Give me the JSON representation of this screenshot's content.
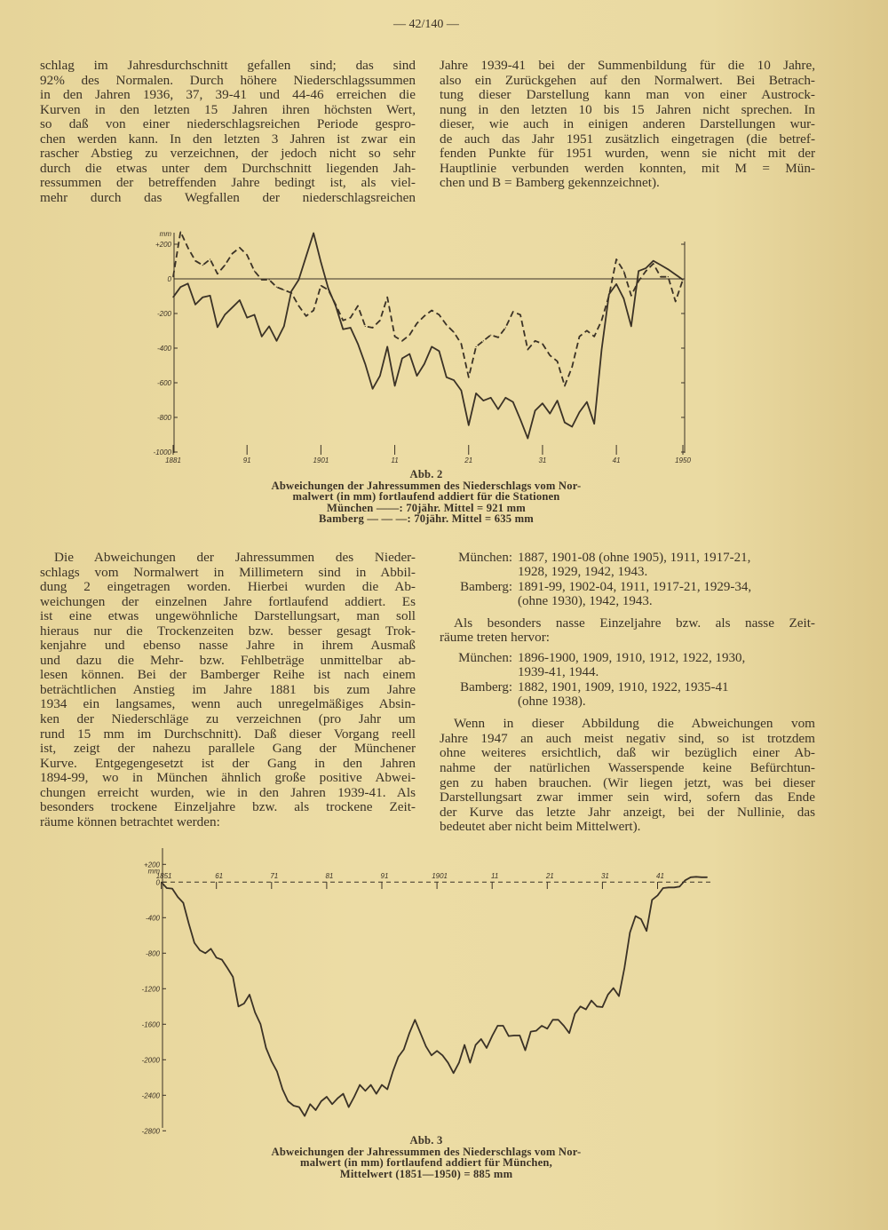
{
  "page_number": "— 42/140 —",
  "top_left_lines": [
    "schlag im Jahresdurchschnitt gefallen sind; das sind",
    "92% des Normalen. Durch höhere Niederschlagssummen",
    "in den Jahren 1936, 37, 39-41 und 44-46 erreichen die",
    "Kurven in den letzten 15 Jahren ihren höchsten Wert,",
    "so daß von einer niederschlagsreichen Periode gespro-",
    "chen werden kann. In den letzten 3 Jahren ist zwar ein",
    "rascher Abstieg zu verzeichnen, der jedoch nicht so sehr",
    "durch die etwas unter dem Durchschnitt liegenden Jah-",
    "ressummen der betreffenden Jahre bedingt ist, als viel-",
    "mehr durch das Wegfallen der niederschlagsreichen"
  ],
  "top_right_lines": [
    "Jahre 1939-41 bei der Summenbildung für die 10 Jahre,",
    "also ein Zurückgehen auf den Normalwert. Bei Betrach-",
    "tung dieser Darstellung kann man von einer Austrock-",
    "nung in den letzten 10 bis 15 Jahren nicht sprechen. In",
    "dieser, wie auch in einigen anderen Darstellungen wur-",
    "de auch das Jahr 1951 zusätzlich eingetragen (die betref-",
    "fenden Punkte für 1951 wurden, wenn sie nicht mit der",
    "Hauptlinie verbunden werden konnten, mit M = Mün-",
    "chen und B = Bamberg gekennzeichnet)."
  ],
  "figure2_caption": {
    "label": "Abb. 2",
    "lines": [
      "Abweichungen der Jahressummen des Niederschlags vom Nor-",
      "malwert (in mm) fortlaufend addiert für die Stationen",
      "München ——: 70jähr. Mittel = 921 mm",
      "Bamberg — — —: 70jähr. Mittel = 635 mm"
    ]
  },
  "bottom_left_lines": [
    "Die Abweichungen der Jahressummen des Nieder-",
    "schlags vom Normalwert in Millimetern sind in Abbil-",
    "dung 2 eingetragen worden. Hierbei wurden die Ab-",
    "weichungen der einzelnen Jahre fortlaufend addiert. Es",
    "ist eine etwas ungewöhnliche Darstellungsart, man soll",
    "hieraus nur die Trockenzeiten bzw. besser gesagt Trok-",
    "kenjahre und ebenso nasse Jahre in ihrem Ausmaß",
    "und dazu die Mehr- bzw. Fehlbeträge unmittelbar ab-",
    "lesen können. Bei der Bamberger Reihe ist nach einem",
    "beträchtlichen Anstieg im Jahre 1881 bis zum Jahre",
    "1934 ein langsames, wenn auch unregelmäßiges Absin-",
    "ken der Niederschläge zu verzeichnen (pro Jahr um",
    "rund 15 mm im Durchschnitt). Daß dieser Vorgang reell",
    "ist, zeigt der nahezu parallele Gang der Münchener",
    "Kurve. Entgegengesetzt ist der Gang in den Jahren",
    "1894-99, wo in München ähnlich große positive Abwei-",
    "chungen erreicht wurden, wie in den Jahren 1939-41. Als",
    "besonders trockene Einzeljahre bzw. als trockene Zeit-",
    "räume können betrachtet werden:"
  ],
  "dry_years": [
    {
      "station": "München:",
      "lines": [
        "1887, 1901-08 (ohne 1905), 1911, 1917-21,",
        "1928, 1929, 1942, 1943."
      ]
    },
    {
      "station": "Bamberg:",
      "lines": [
        "1891-99, 1902-04, 1911, 1917-21, 1929-34,",
        "(ohne 1930), 1942, 1943."
      ]
    }
  ],
  "wet_intro_lines": [
    "Als besonders nasse Einzeljahre bzw. als nasse Zeit-",
    "räume treten hervor:"
  ],
  "wet_years": [
    {
      "station": "München:",
      "lines": [
        "1896-1900, 1909, 1910, 1912, 1922, 1930,",
        "1939-41, 1944."
      ]
    },
    {
      "station": "Bamberg:",
      "lines": [
        "1882, 1901, 1909, 1910, 1922, 1935-41",
        "(ohne 1938)."
      ]
    }
  ],
  "closing_lines": [
    "Wenn in dieser Abbildung die Abweichungen vom",
    "Jahre 1947 an auch meist negativ sind, so ist trotzdem",
    "ohne weiteres ersichtlich, daß wir bezüglich einer Ab-",
    "nahme der natürlichen Wasserspende keine Befürchtun-",
    "gen zu haben brauchen. (Wir liegen jetzt, was bei dieser",
    "Darstellungsart zwar immer sein wird, sofern das Ende",
    "der Kurve das letzte Jahr anzeigt, bei der Nullinie, das",
    "bedeutet aber nicht beim Mittelwert)."
  ],
  "figure3_caption": {
    "label": "Abb. 3",
    "lines": [
      "Abweichungen der Jahressummen des Niederschlags vom Nor-",
      "malwert (in mm) fortlaufend addiert für München,",
      "Mittelwert (1851—1950) = 885 mm"
    ]
  },
  "chart_data": [
    {
      "type": "line",
      "title": "Abb. 2",
      "ylabel": "mm",
      "ylim": [
        -1000,
        200
      ],
      "xlim": [
        1881,
        1950
      ],
      "ytick_labels": [
        "+200",
        "0",
        "-200",
        "-400",
        "-600",
        "-800",
        "-1000"
      ],
      "ytick_values": [
        200,
        0,
        -200,
        -400,
        -600,
        -800,
        -1000
      ],
      "xtick_labels": [
        "1881",
        "91",
        "1901",
        "11",
        "21",
        "31",
        "41",
        "1950"
      ],
      "xtick_values": [
        1881,
        1891,
        1901,
        1911,
        1921,
        1931,
        1941,
        1950
      ],
      "grid": false,
      "zero_line": true,
      "x": [
        1881,
        1882,
        1883,
        1884,
        1885,
        1886,
        1887,
        1888,
        1889,
        1890,
        1891,
        1892,
        1893,
        1894,
        1895,
        1896,
        1897,
        1898,
        1899,
        1900,
        1901,
        1902,
        1903,
        1904,
        1905,
        1906,
        1907,
        1908,
        1909,
        1910,
        1911,
        1912,
        1913,
        1914,
        1915,
        1916,
        1917,
        1918,
        1919,
        1920,
        1921,
        1922,
        1923,
        1924,
        1925,
        1926,
        1927,
        1928,
        1929,
        1930,
        1931,
        1932,
        1933,
        1934,
        1935,
        1936,
        1937,
        1938,
        1939,
        1940,
        1941,
        1942,
        1943,
        1944,
        1945,
        1946,
        1947,
        1948,
        1949,
        1950
      ],
      "series": [
        {
          "name": "München",
          "style": "solid",
          "color": "#3b3226",
          "values": [
            -106,
            -47,
            -27,
            -148,
            -106,
            -97,
            -279,
            -207,
            -165,
            -123,
            -224,
            -207,
            -333,
            -274,
            -358,
            -274,
            -72,
            -5,
            129,
            264,
            96,
            -55,
            -156,
            -291,
            -282,
            -375,
            -492,
            -635,
            -560,
            -392,
            -618,
            -459,
            -434,
            -560,
            -492,
            -392,
            -417,
            -568,
            -585,
            -644,
            -845,
            -661,
            -703,
            -686,
            -753,
            -686,
            -711,
            -812,
            -921,
            -761,
            -719,
            -778,
            -703,
            -829,
            -854,
            -770,
            -711,
            -837,
            -408,
            -89,
            -30,
            -114,
            -274,
            45,
            62,
            104,
            80,
            55,
            25,
            -5
          ]
        },
        {
          "name": "Bamberg",
          "style": "dashed",
          "color": "#3b3226",
          "values": [
            12,
            272,
            180,
            104,
            79,
            113,
            29,
            79,
            146,
            180,
            138,
            45,
            -5,
            -5,
            -47,
            -64,
            -81,
            -156,
            -215,
            -182,
            -39,
            -64,
            -148,
            -240,
            -224,
            -156,
            -274,
            -282,
            -240,
            -106,
            -333,
            -358,
            -324,
            -257,
            -215,
            -182,
            -207,
            -266,
            -308,
            -375,
            -568,
            -392,
            -358,
            -324,
            -338,
            -282,
            -190,
            -207,
            -408,
            -358,
            -375,
            -442,
            -476,
            -618,
            -509,
            -333,
            -299,
            -333,
            -240,
            -97,
            113,
            45,
            -97,
            -13,
            45,
            87,
            12,
            12,
            -131,
            -5
          ]
        }
      ]
    },
    {
      "type": "line",
      "title": "Abb. 3",
      "ylabel": "mm",
      "ylim": [
        -2800,
        200
      ],
      "xlim": [
        1851,
        1950
      ],
      "ytick_labels": [
        "+200",
        "0",
        "-400",
        "-800",
        "-1200",
        "-1600",
        "-2000",
        "-2400",
        "-2800"
      ],
      "ytick_values": [
        200,
        0,
        -400,
        -800,
        -1200,
        -1600,
        -2000,
        -2400,
        -2800
      ],
      "xtick_labels": [
        "1851",
        "61",
        "71",
        "81",
        "91",
        "1901",
        "11",
        "21",
        "31",
        "41"
      ],
      "xtick_values": [
        1851,
        1861,
        1871,
        1881,
        1891,
        1901,
        1911,
        1921,
        1931,
        1941
      ],
      "grid": false,
      "zero_line": "dashed",
      "x": [
        1851,
        1852,
        1853,
        1854,
        1855,
        1856,
        1857,
        1858,
        1859,
        1860,
        1861,
        1862,
        1863,
        1864,
        1865,
        1866,
        1867,
        1868,
        1869,
        1870,
        1871,
        1872,
        1873,
        1874,
        1875,
        1876,
        1877,
        1878,
        1879,
        1880,
        1881,
        1882,
        1883,
        1884,
        1885,
        1886,
        1887,
        1888,
        1889,
        1890,
        1891,
        1892,
        1893,
        1894,
        1895,
        1896,
        1897,
        1898,
        1899,
        1900,
        1901,
        1902,
        1903,
        1904,
        1905,
        1906,
        1907,
        1908,
        1909,
        1910,
        1911,
        1912,
        1913,
        1914,
        1915,
        1916,
        1917,
        1918,
        1919,
        1920,
        1921,
        1922,
        1923,
        1924,
        1925,
        1926,
        1927,
        1928,
        1929,
        1930,
        1931,
        1932,
        1933,
        1934,
        1935,
        1936,
        1937,
        1938,
        1939,
        1940,
        1941,
        1942,
        1943,
        1944,
        1945,
        1946,
        1947,
        1948,
        1949,
        1950
      ],
      "series": [
        {
          "name": "München",
          "style": "solid",
          "color": "#3b3226",
          "values": [
            0,
            -67,
            -73,
            -167,
            -233,
            -467,
            -683,
            -767,
            -800,
            -750,
            -850,
            -873,
            -967,
            -1067,
            -1400,
            -1367,
            -1267,
            -1467,
            -1600,
            -1867,
            -2017,
            -2133,
            -2333,
            -2467,
            -2517,
            -2533,
            -2633,
            -2500,
            -2567,
            -2467,
            -2417,
            -2500,
            -2433,
            -2383,
            -2533,
            -2417,
            -2283,
            -2350,
            -2283,
            -2383,
            -2283,
            -2333,
            -2133,
            -1967,
            -1883,
            -1700,
            -1550,
            -1700,
            -1850,
            -1950,
            -1900,
            -1950,
            -2033,
            -2150,
            -2033,
            -1833,
            -2033,
            -1833,
            -1767,
            -1867,
            -1733,
            -1617,
            -1617,
            -1733,
            -1727,
            -1727,
            -1893,
            -1683,
            -1673,
            -1617,
            -1650,
            -1550,
            -1550,
            -1617,
            -1700,
            -1483,
            -1400,
            -1433,
            -1333,
            -1400,
            -1407,
            -1267,
            -1193,
            -1283,
            -967,
            -567,
            -383,
            -417,
            -550,
            -200,
            -150,
            -67,
            -60,
            -60,
            -50,
            20,
            55,
            60,
            55,
            55
          ]
        }
      ]
    }
  ]
}
